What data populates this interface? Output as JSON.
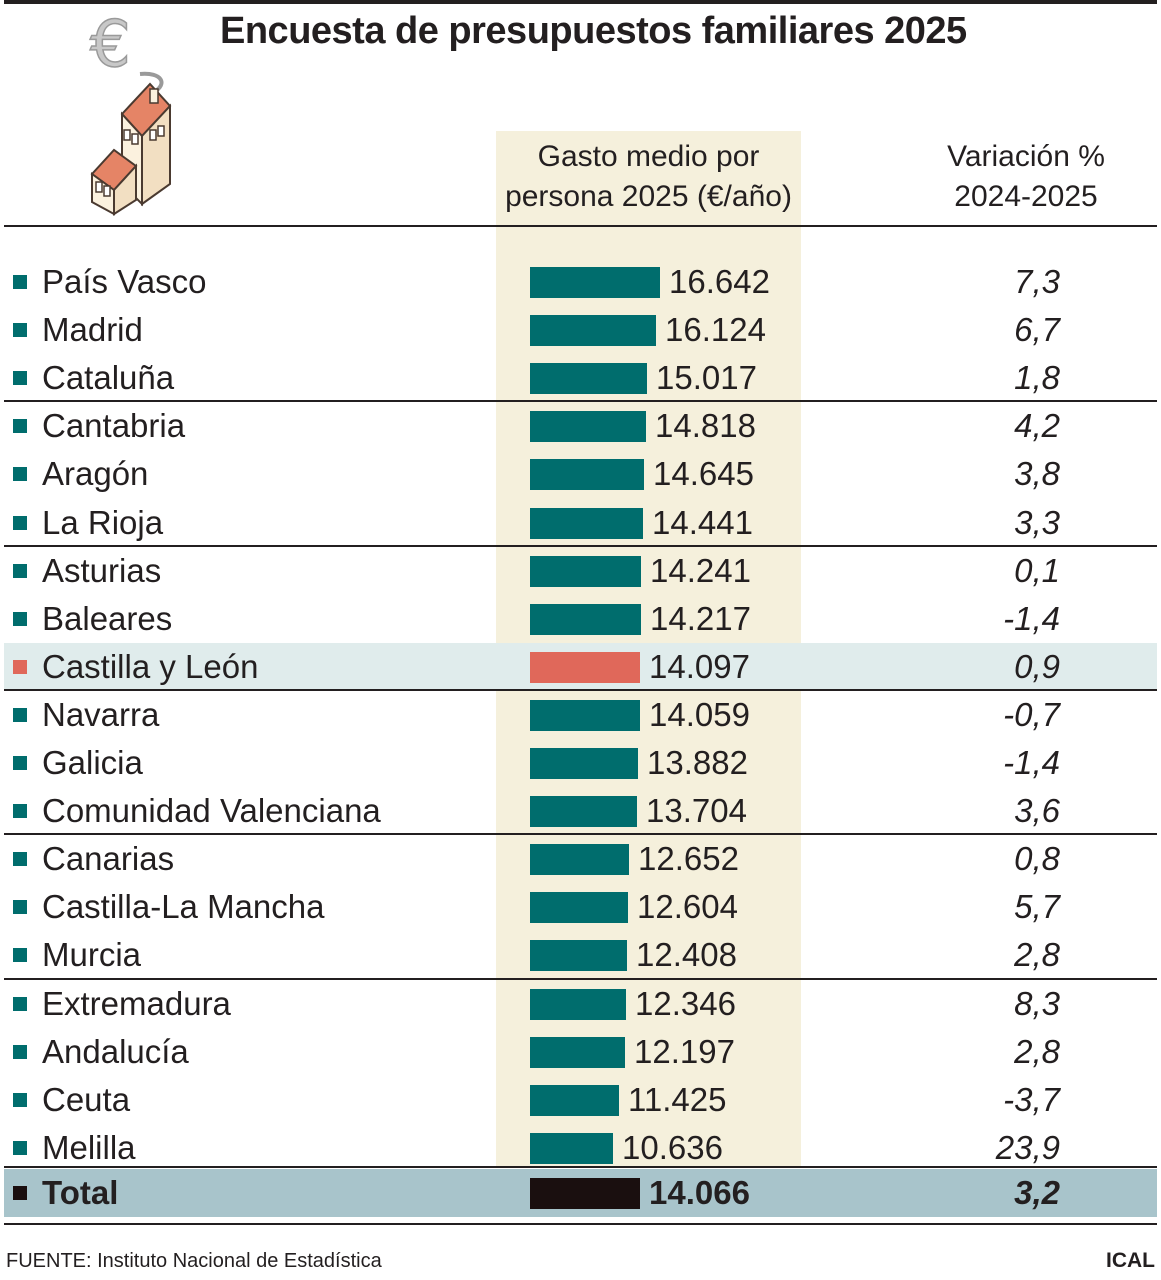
{
  "title": "Encuesta de presupuestos familiares 2025",
  "headers": {
    "gasto_line1": "Gasto medio por",
    "gasto_line2": "persona 2025 (€/año)",
    "var_line1": "Variación %",
    "var_line2": "2024-2025"
  },
  "colors": {
    "bar": "#006d6d",
    "highlight_bar": "#e0685a",
    "total_bar": "#1a0f0f",
    "column_band": "#f5f0dc",
    "highlight_row": "#e0ecec",
    "total_row": "#a8c4cb"
  },
  "icon": "euro-house-icon",
  "chart_data": {
    "type": "bar",
    "orientation": "horizontal",
    "title": "Encuesta de presupuestos familiares 2025",
    "categories": [
      "País Vasco",
      "Madrid",
      "Cataluña",
      "Cantabria",
      "Aragón",
      "La Rioja",
      "Asturias",
      "Baleares",
      "Castilla y León",
      "Navarra",
      "Galicia",
      "Comunidad Valenciana",
      "Canarias",
      "Castilla-La Mancha",
      "Murcia",
      "Extremadura",
      "Andalucía",
      "Ceuta",
      "Melilla",
      "Total"
    ],
    "values": [
      16642,
      16124,
      15017,
      14818,
      14645,
      14441,
      14241,
      14217,
      14097,
      14059,
      13882,
      13704,
      12652,
      12604,
      12408,
      12346,
      12197,
      11425,
      10636,
      14066
    ],
    "value_labels": [
      "16.642",
      "16.124",
      "15.017",
      "14.818",
      "14.645",
      "14.441",
      "14.241",
      "14.217",
      "14.097",
      "14.059",
      "13.882",
      "13.704",
      "12.652",
      "12.604",
      "12.408",
      "12.346",
      "12.197",
      "11.425",
      "10.636",
      "14.066"
    ],
    "variation_labels": [
      "7,3",
      "6,7",
      "1,8",
      "4,2",
      "3,8",
      "3,3",
      "0,1",
      "-1,4",
      "0,9",
      "-0,7",
      "-1,4",
      "3,6",
      "0,8",
      "5,7",
      "2,8",
      "8,3",
      "2,8",
      "-3,7",
      "23,9",
      "3,2"
    ],
    "highlight": "Castilla y León",
    "total": "Total"
  },
  "footer": {
    "source": "FUENTE: Instituto Nacional de Estadística",
    "brand": "ICAL"
  }
}
